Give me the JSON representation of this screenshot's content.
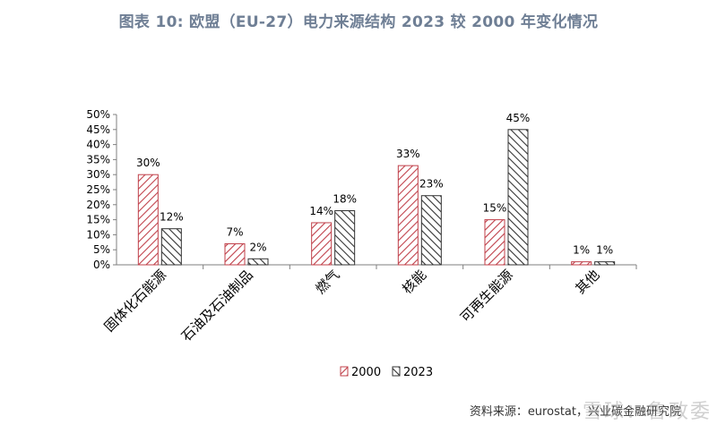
{
  "chart_data": {
    "type": "bar",
    "title": "图表 10: 欧盟（EU-27）电力来源结构 2023 较 2000 年变化情况",
    "categories": [
      "固体化石能源",
      "石油及石油制品",
      "燃气",
      "核能",
      "可再生能源",
      "其他"
    ],
    "series": [
      {
        "name": "2000",
        "values": [
          30,
          7,
          14,
          33,
          15,
          1
        ],
        "labels": [
          "30%",
          "7%",
          "14%",
          "33%",
          "15%",
          "1%"
        ],
        "color": "#c0404a"
      },
      {
        "name": "2023",
        "values": [
          12,
          2,
          18,
          23,
          45,
          1
        ],
        "labels": [
          "12%",
          "2%",
          "18%",
          "23%",
          "45%",
          "1%"
        ],
        "color": "#333333"
      }
    ],
    "ylim": [
      0,
      50
    ],
    "yticks": [
      "0%",
      "5%",
      "10%",
      "15%",
      "20%",
      "25%",
      "30%",
      "35%",
      "40%",
      "45%",
      "50%"
    ],
    "xlabel": "",
    "ylabel": "",
    "legend": "bottom-center"
  },
  "footer": {
    "source": "资料来源：eurostat，兴业碳金融研究院",
    "watermark": "雪球：鲁政委"
  }
}
